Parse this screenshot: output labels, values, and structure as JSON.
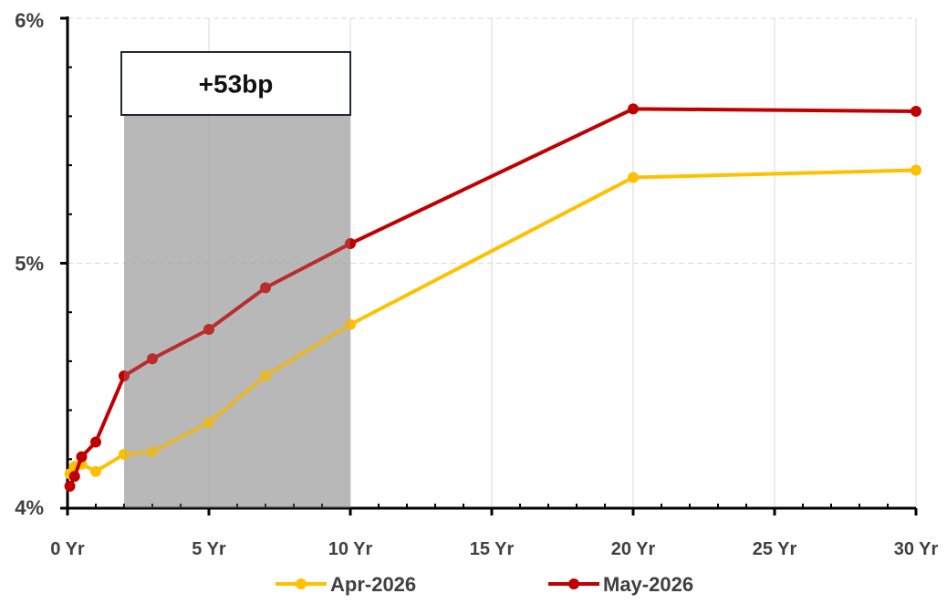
{
  "chart_data": {
    "type": "line",
    "x_tick_labels": [
      "0 Yr",
      "5 Yr",
      "10 Yr",
      "15 Yr",
      "20 Yr",
      "25 Yr",
      "30 Yr"
    ],
    "x_ticks": [
      0,
      5,
      10,
      15,
      20,
      25,
      30
    ],
    "y_tick_labels": [
      "4%",
      "5%",
      "6%"
    ],
    "y_ticks": [
      4,
      5,
      6
    ],
    "xlim": [
      0,
      30
    ],
    "ylim": [
      4,
      6
    ],
    "grid": true,
    "legend_position": "bottom",
    "shaded_region": {
      "x_start": 2,
      "x_end": 10,
      "label": "+53bp"
    },
    "series": [
      {
        "name": "Apr-2026",
        "color": "#FFC000",
        "x": [
          0.083,
          0.25,
          0.5,
          1,
          2,
          3,
          5,
          7,
          10,
          20,
          30
        ],
        "y": [
          4.14,
          4.17,
          4.18,
          4.15,
          4.22,
          4.23,
          4.35,
          4.54,
          4.75,
          5.35,
          5.38
        ]
      },
      {
        "name": "May-2026",
        "color": "#C00000",
        "x": [
          0.083,
          0.25,
          0.5,
          1,
          2,
          3,
          5,
          7,
          10,
          20,
          30
        ],
        "y": [
          4.09,
          4.13,
          4.21,
          4.27,
          4.54,
          4.61,
          4.73,
          4.9,
          5.08,
          5.63,
          5.62
        ]
      }
    ]
  }
}
